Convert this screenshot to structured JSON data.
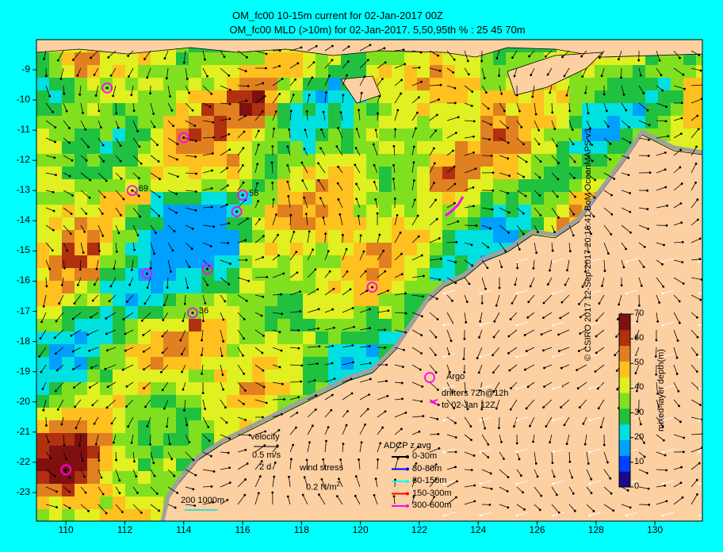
{
  "title_line1": "OM_fc00 10-15m current for 02-Jan-2017 00Z",
  "title_line2": "OM_fc00 MLD (>10m) for 02-Jan-2017. 5,50,95th % : 25  45  70m",
  "y_ticks": [
    "-9",
    "-10",
    "-11",
    "-12",
    "-13",
    "-14",
    "-15",
    "-16",
    "-17",
    "-18",
    "-19",
    "-20",
    "-21",
    "-22",
    "-23"
  ],
  "x_ticks": [
    "110",
    "112",
    "114",
    "116",
    "118",
    "120",
    "122",
    "124",
    "126",
    "128",
    "130"
  ],
  "colorbar": {
    "label": "mixed-layer depth(m)",
    "ticks": [
      "70",
      "60",
      "50",
      "40",
      "30",
      "20",
      "10",
      "0"
    ],
    "colors": [
      "#1a0a8c",
      "#0040ff",
      "#00a0ff",
      "#00e0e0",
      "#20c040",
      "#80e020",
      "#e0f020",
      "#ffc020",
      "#e08020",
      "#b03010",
      "#801010"
    ]
  },
  "credit": "© CSIRO 2017   12-Sep-2017 20:16:41 BoM OceanMAPS v3",
  "legend": {
    "argo": "Argo",
    "drifters_line1": "drifters 72h@12h",
    "drifters_line2": "to 02-Jan 12Z",
    "velocity": "velocity",
    "velocity_scale": "0.5 m/s",
    "velocity_days": "2 d",
    "wind": "wind stress",
    "wind_scale": "0.2 N/m",
    "wind_exp": "2",
    "adcp_title": "ADCP z avg",
    "adcp": [
      {
        "label": "0-30m",
        "color": "#000000"
      },
      {
        "label": "30-80m",
        "color": "#0000ff"
      },
      {
        "label": "80-150m",
        "color": "#00ffff"
      },
      {
        "label": "150-300m",
        "color": "#ff0000"
      },
      {
        "label": "300-600m",
        "color": "#ff00ff"
      }
    ],
    "isobaths": "200  1000m"
  },
  "argo_floats": [
    {
      "lon": 111.4,
      "lat": -9.6,
      "label": ""
    },
    {
      "lon": 114.0,
      "lat": -11.25,
      "label": ""
    },
    {
      "lon": 112.25,
      "lat": -13.0,
      "label": "69"
    },
    {
      "lon": 116.0,
      "lat": -13.15,
      "label": "56"
    },
    {
      "lon": 115.8,
      "lat": -13.7,
      "label": ""
    },
    {
      "lon": 112.75,
      "lat": -15.75,
      "label": ""
    },
    {
      "lon": 114.8,
      "lat": -15.6,
      "label": ""
    },
    {
      "lon": 114.3,
      "lat": -17.05,
      "label": "36"
    },
    {
      "lon": 120.4,
      "lat": -16.2,
      "label": ""
    },
    {
      "lon": 110.0,
      "lat": -22.25,
      "label": ""
    }
  ]
}
